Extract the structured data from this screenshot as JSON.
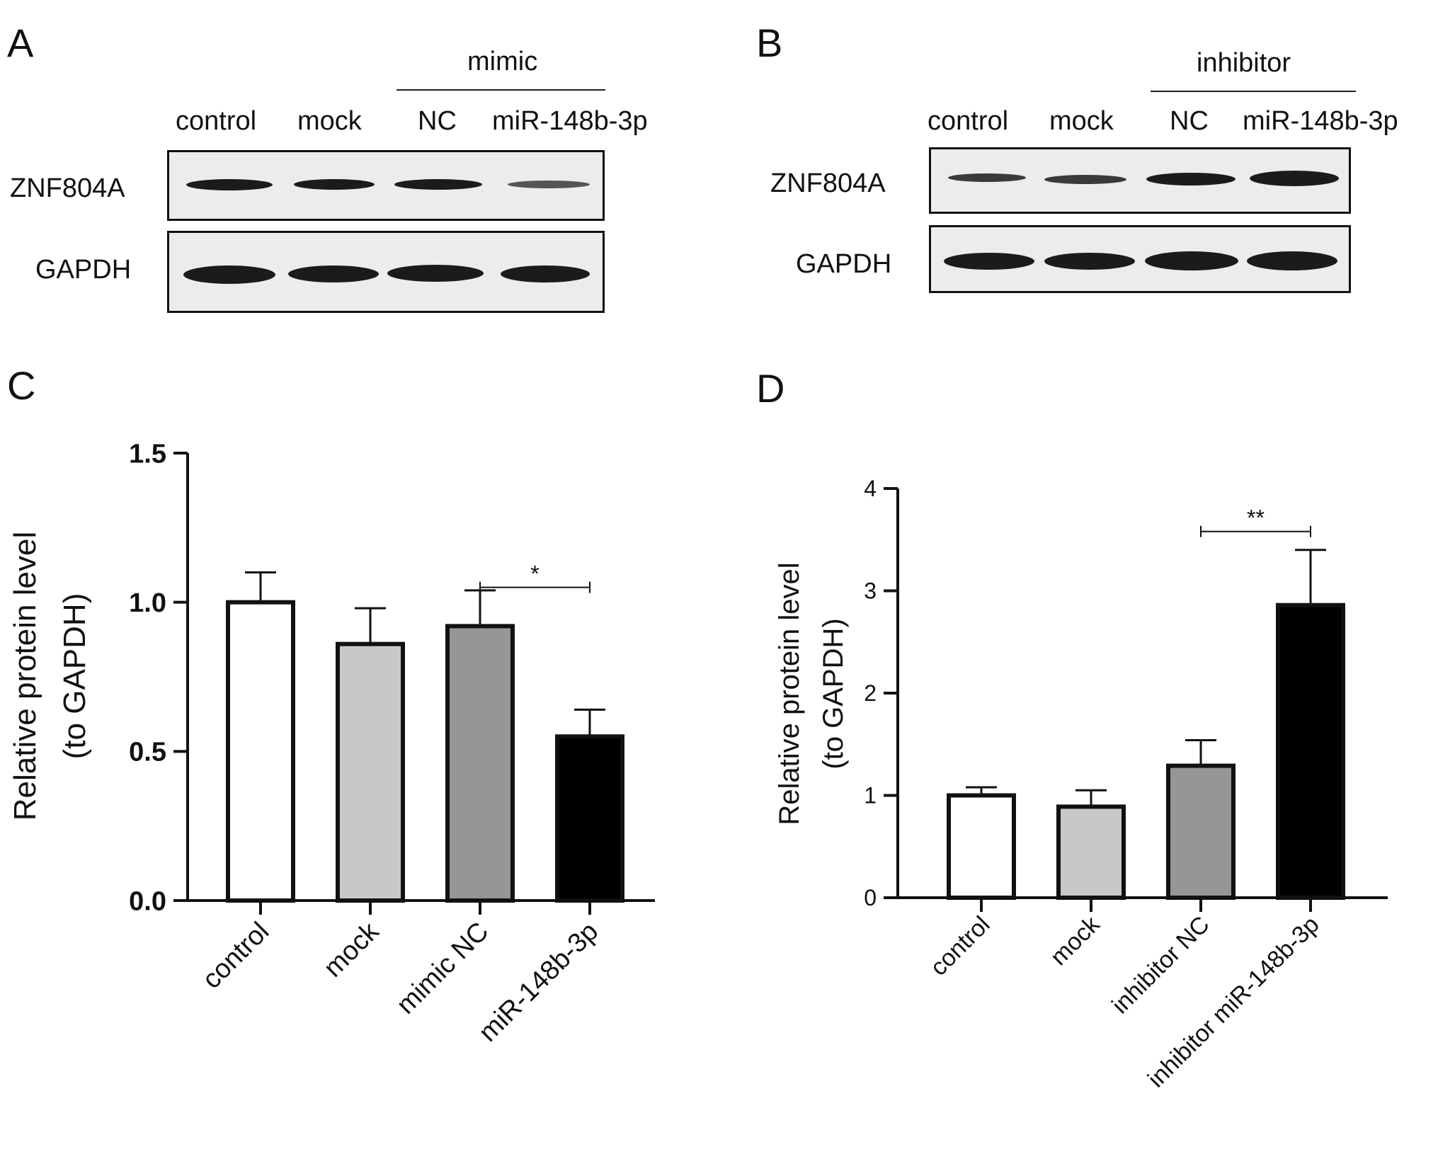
{
  "panels": {
    "A": {
      "letter": "A",
      "group_label": "mimic",
      "lanes": [
        "control",
        "mock",
        "NC",
        "miR-148b-3p"
      ],
      "rows": [
        "ZNF804A",
        "GAPDH"
      ],
      "znf_intensity": [
        0.8,
        0.7,
        0.75,
        0.4
      ],
      "gapdh_intensity": [
        1.0,
        0.95,
        0.95,
        0.95
      ]
    },
    "B": {
      "letter": "B",
      "group_label": "inhibitor",
      "lanes": [
        "control",
        "mock",
        "NC",
        "miR-148b-3p"
      ],
      "rows": [
        "ZNF804A",
        "GAPDH"
      ],
      "znf_intensity": [
        0.45,
        0.5,
        0.8,
        0.95
      ],
      "gapdh_intensity": [
        0.95,
        0.95,
        1.0,
        1.0
      ]
    },
    "C": {
      "letter": "C"
    },
    "D": {
      "letter": "D"
    }
  },
  "chart_data": [
    {
      "type": "bar",
      "panel": "C",
      "title": "",
      "xlabel": "",
      "ylabel_line1": "Relative protein level",
      "ylabel_line2": "(to GAPDH)",
      "categories": [
        "control",
        "mock",
        "mimic NC",
        "miR-148b-3p"
      ],
      "values": [
        1.0,
        0.86,
        0.92,
        0.55
      ],
      "errors": [
        0.1,
        0.12,
        0.12,
        0.09
      ],
      "colors": [
        "#ffffff",
        "#c8c8c8",
        "#969696",
        "#000000"
      ],
      "ylim": [
        0,
        1.5
      ],
      "yticks": [
        0.0,
        0.5,
        1.0,
        1.5
      ],
      "ytick_labels": [
        "0.0",
        "0.5",
        "1.0",
        "1.5"
      ],
      "significance": {
        "from": 2,
        "to": 3,
        "label": "*",
        "y": 1.05
      }
    },
    {
      "type": "bar",
      "panel": "D",
      "title": "",
      "xlabel": "",
      "ylabel_line1": "Relative protein level",
      "ylabel_line2": "(to GAPDH)",
      "categories": [
        "control",
        "mock",
        "inhibitor NC",
        "inhibitor miR-148b-3p"
      ],
      "values": [
        1.0,
        0.89,
        1.29,
        2.86
      ],
      "errors": [
        0.08,
        0.16,
        0.25,
        0.54
      ],
      "colors": [
        "#ffffff",
        "#c8c8c8",
        "#969696",
        "#000000"
      ],
      "ylim": [
        0,
        4
      ],
      "yticks": [
        0,
        1,
        2,
        3,
        4
      ],
      "ytick_labels": [
        "0",
        "1",
        "2",
        "3",
        "4"
      ],
      "significance": {
        "from": 2,
        "to": 3,
        "label": "**",
        "y": 3.58
      }
    }
  ]
}
